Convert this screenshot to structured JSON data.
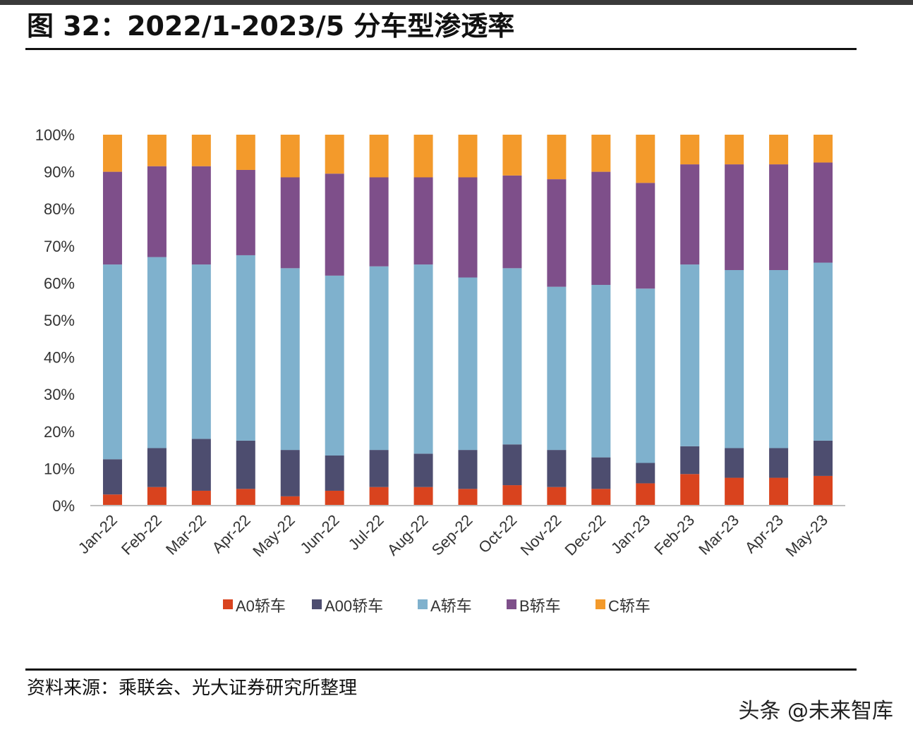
{
  "title": "图 32：2022/1-2023/5 分车型渗透率",
  "source": "资料来源：乘联会、光大证券研究所整理",
  "watermark": "头条 @未来智库",
  "chart_data": {
    "type": "bar",
    "stacked": true,
    "categories": [
      "Jan-22",
      "Feb-22",
      "Mar-22",
      "Apr-22",
      "May-22",
      "Jun-22",
      "Jul-22",
      "Aug-22",
      "Sep-22",
      "Oct-22",
      "Nov-22",
      "Dec-22",
      "Jan-23",
      "Feb-23",
      "Mar-23",
      "Apr-23",
      "May-23"
    ],
    "y_ticks": [
      "0%",
      "10%",
      "20%",
      "30%",
      "40%",
      "50%",
      "60%",
      "70%",
      "80%",
      "90%",
      "100%"
    ],
    "ylim": [
      0,
      100
    ],
    "grid": false,
    "legend_position": "bottom",
    "series": [
      {
        "name": "A0轿车",
        "color": "#d9431e",
        "values": [
          3,
          5,
          4,
          4.5,
          2.5,
          4,
          5,
          5,
          4.5,
          5.5,
          5,
          4.5,
          6,
          8.5,
          7.5,
          7.5,
          8
        ]
      },
      {
        "name": "A00轿车",
        "color": "#4d4d6f",
        "values": [
          9.5,
          10.5,
          14,
          13,
          12.5,
          9.5,
          10,
          9,
          10.5,
          11,
          10,
          8.5,
          5.5,
          7.5,
          8,
          8,
          9.5
        ]
      },
      {
        "name": "A轿车",
        "color": "#7fb1cd",
        "values": [
          52.5,
          51.5,
          47,
          50,
          49,
          48.5,
          49.5,
          51,
          46.5,
          47.5,
          44,
          46.5,
          47,
          49,
          48,
          48,
          48
        ]
      },
      {
        "name": "B轿车",
        "color": "#7e4f8a",
        "values": [
          25,
          24.5,
          26.5,
          23,
          24.5,
          27.5,
          24,
          23.5,
          27,
          25,
          29,
          30.5,
          28.5,
          27,
          28.5,
          28.5,
          27
        ]
      },
      {
        "name": "C轿车",
        "color": "#f39a2b",
        "values": [
          10,
          8.5,
          8.5,
          9.5,
          11.5,
          10.5,
          11.5,
          11.5,
          11.5,
          11,
          12,
          10,
          13,
          8,
          8,
          8,
          7.5
        ]
      }
    ]
  }
}
